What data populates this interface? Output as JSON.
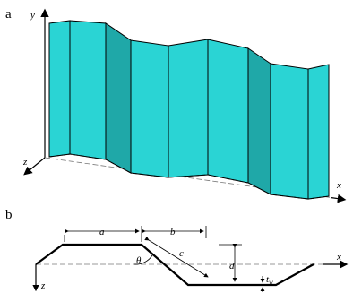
{
  "panel_a": {
    "label": "a",
    "axes": {
      "y": "y",
      "z": "z",
      "x": "x"
    }
  },
  "panel_b": {
    "label": "b",
    "axes": {
      "x": "x",
      "z": "z"
    },
    "dimensions": {
      "a": "a",
      "b": "b",
      "c": "c",
      "d": "d",
      "theta": "θ",
      "t": "t",
      "w": "w"
    }
  }
}
